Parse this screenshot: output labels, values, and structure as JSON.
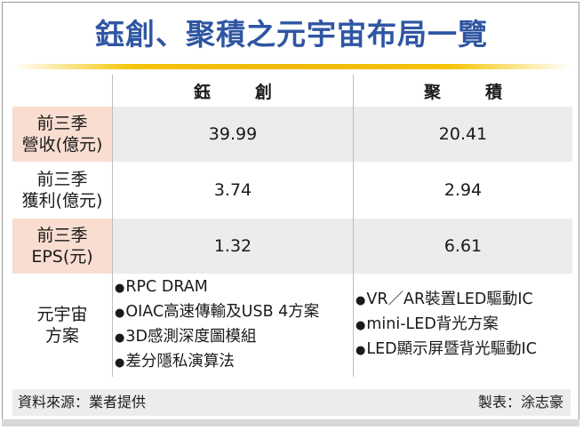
{
  "title": "鈺創、聚積之元宇宙布局一覽",
  "columns": [
    "鈺創",
    "聚積"
  ],
  "rows": [
    {
      "label_line1": "前三季",
      "label_line2": "營收(億元)",
      "values": [
        "39.99",
        "20.41"
      ]
    },
    {
      "label_line1": "前三季",
      "label_line2": "獲利(億元)",
      "values": [
        "3.74",
        "2.94"
      ]
    },
    {
      "label_line1": "前三季",
      "label_line2": "EPS(元)",
      "values": [
        "1.32",
        "6.61"
      ]
    }
  ],
  "metaverse": {
    "label_line1": "元宇宙",
    "label_line2": "方案",
    "col1_items": [
      "RPC DRAM",
      "OIAC高速傳輸及USB 4方案",
      "3D感測深度圖模組",
      "差分隱私演算法"
    ],
    "col2_items": [
      "VR／AR裝置LED驅動IC",
      "mini-LED背光方案",
      "LED顯示屏暨背光驅動IC"
    ]
  },
  "footer": {
    "source": "資料來源：業者提供",
    "credit": "製表：涂志豪"
  }
}
